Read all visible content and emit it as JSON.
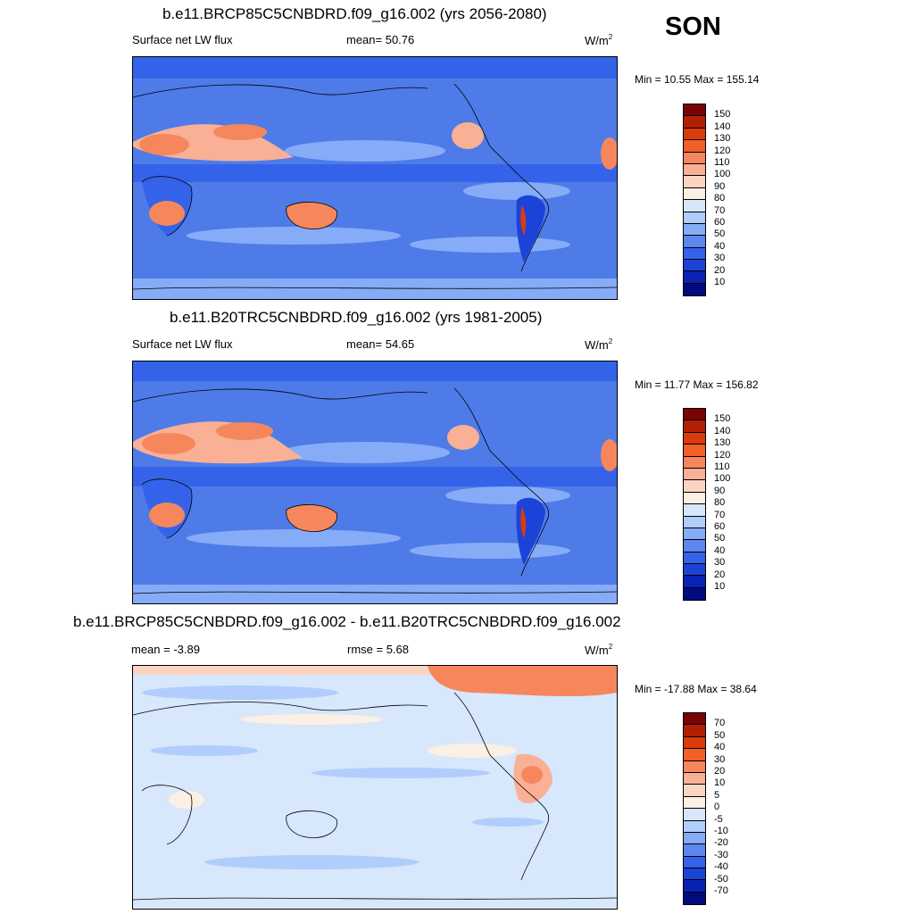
{
  "season": "SON",
  "panels": [
    {
      "title": "b.e11.BRCP85C5CNBDRD.f09_g16.002 (yrs 2056-2080)",
      "left_label": "Surface net LW flux",
      "center_label": "mean=  50.76",
      "units": "W/m",
      "units_exp": "2",
      "minmax": "Min =  10.55 Max = 155.14",
      "map_base": "#4e7be8",
      "colorbar": {
        "colors": [
          "#7a0403",
          "#b22004",
          "#dc3b0c",
          "#f2602a",
          "#f6875c",
          "#f9b095",
          "#fbd5c2",
          "#fcefe4",
          "#d8e6fc",
          "#b1cdfb",
          "#86acf7",
          "#5d86ef",
          "#3463ea",
          "#1c43d8",
          "#0a22b4",
          "#020a80"
        ],
        "labels": [
          "150",
          "140",
          "130",
          "120",
          "110",
          "100",
          "90",
          "80",
          "70",
          "60",
          "50",
          "40",
          "30",
          "20",
          "10"
        ]
      }
    },
    {
      "title": "b.e11.B20TRC5CNBDRD.f09_g16.002 (yrs 1981-2005)",
      "left_label": "Surface net LW flux",
      "center_label": "mean=  54.65",
      "units": "W/m",
      "units_exp": "2",
      "minmax": "Min =  11.77 Max = 156.82",
      "map_base": "#4e7be8",
      "colorbar": {
        "colors": [
          "#7a0403",
          "#b22004",
          "#dc3b0c",
          "#f2602a",
          "#f6875c",
          "#f9b095",
          "#fbd5c2",
          "#fcefe4",
          "#d8e6fc",
          "#b1cdfb",
          "#86acf7",
          "#5d86ef",
          "#3463ea",
          "#1c43d8",
          "#0a22b4",
          "#020a80"
        ],
        "labels": [
          "150",
          "140",
          "130",
          "120",
          "110",
          "100",
          "90",
          "80",
          "70",
          "60",
          "50",
          "40",
          "30",
          "20",
          "10"
        ]
      }
    },
    {
      "title": "b.e11.BRCP85C5CNBDRD.f09_g16.002 - b.e11.B20TRC5CNBDRD.f09_g16.002",
      "left_label": "mean =  -3.89",
      "center_label": "rmse =   5.68",
      "units": "W/m",
      "units_exp": "2",
      "minmax": "Min = -17.88 Max =  38.64",
      "map_base": "#d7e7fc",
      "colorbar": {
        "colors": [
          "#7a0403",
          "#b22004",
          "#dc3b0c",
          "#f2602a",
          "#f6875c",
          "#f9b095",
          "#fbd5c2",
          "#fcefe4",
          "#d8e6fc",
          "#b1cdfb",
          "#86acf7",
          "#5d86ef",
          "#3463ea",
          "#1c43d8",
          "#0a22b4",
          "#020a80"
        ],
        "labels": [
          "70",
          "50",
          "40",
          "30",
          "20",
          "10",
          "5",
          "0",
          "-5",
          "-10",
          "-20",
          "-30",
          "-40",
          "-50",
          "-70"
        ]
      }
    }
  ]
}
